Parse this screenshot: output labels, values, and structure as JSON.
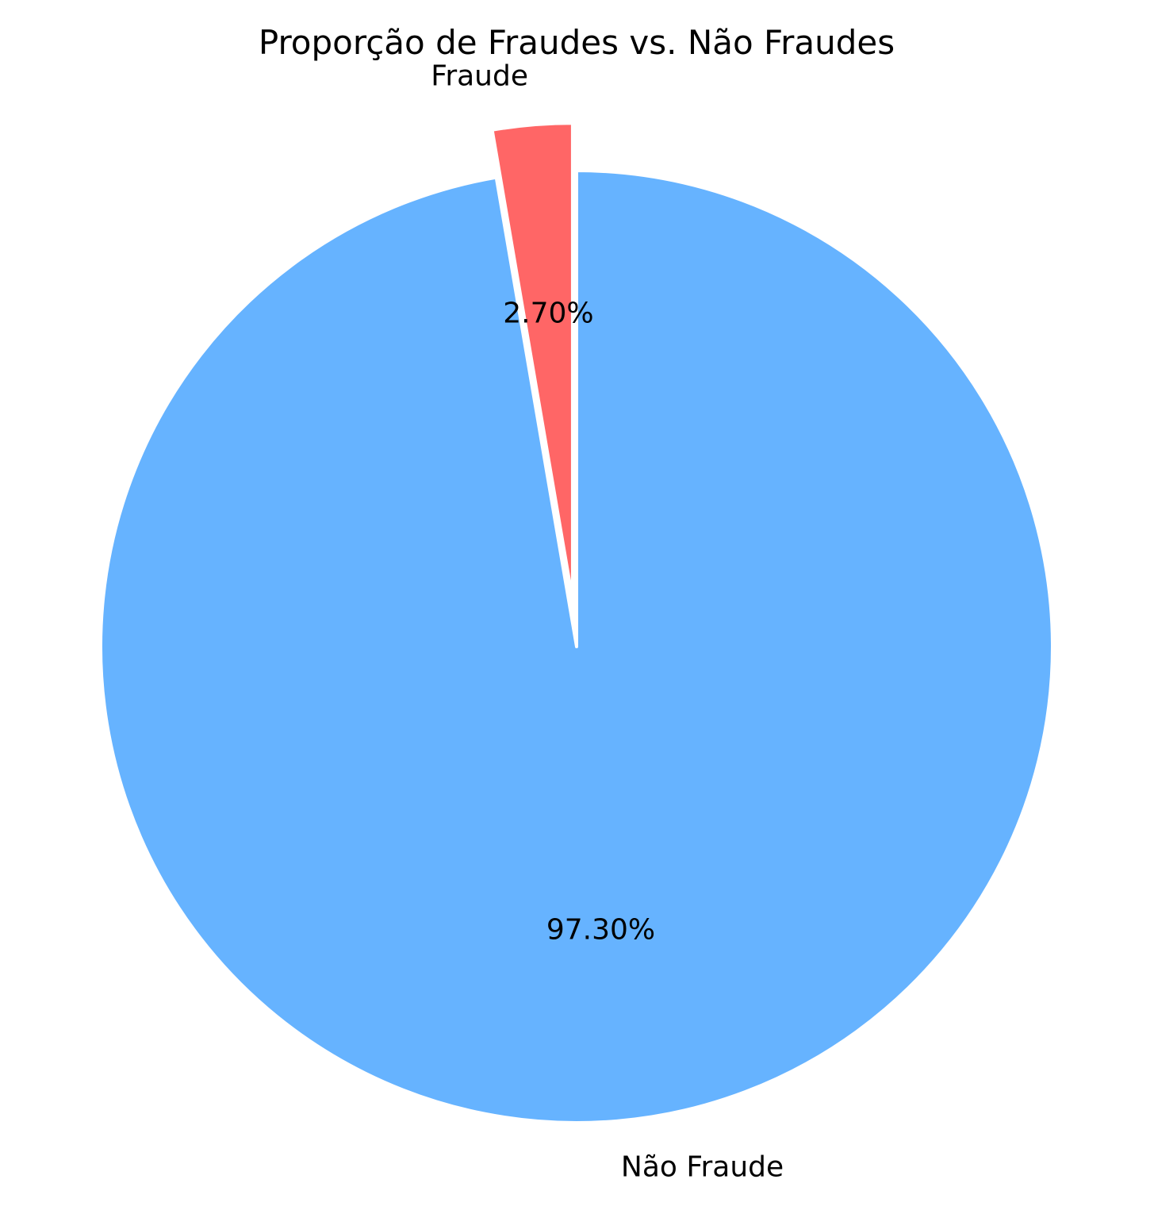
{
  "chart_data": {
    "type": "pie",
    "title": "Proporção de Fraudes vs. Não Fraudes",
    "slices": [
      {
        "label": "Não Fraude",
        "value": 97.3,
        "pct_label": "97.30%",
        "color": "#66b3ff",
        "explode": 0
      },
      {
        "label": "Fraude",
        "value": 2.7,
        "pct_label": "2.70%",
        "color": "#ff6666",
        "explode": 0.1
      }
    ],
    "start_angle": 90,
    "direction": "clockwise",
    "legend": "none"
  }
}
